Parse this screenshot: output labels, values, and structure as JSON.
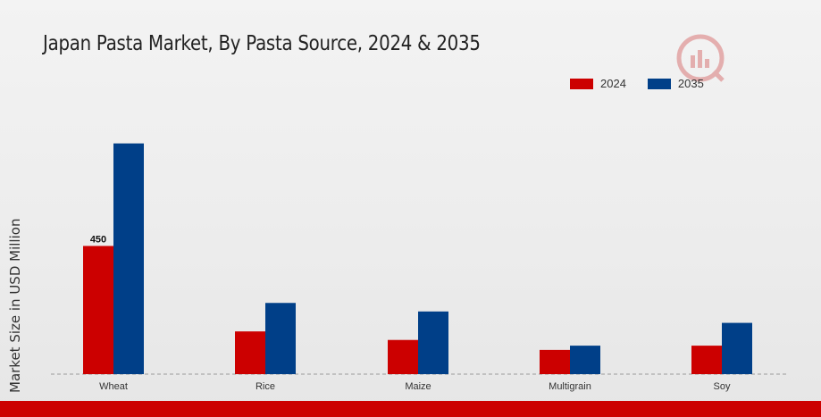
{
  "chart_data": {
    "type": "bar",
    "title": "Japan Pasta Market, By Pasta Source, 2024 & 2035",
    "xlabel": "",
    "ylabel": "Market Size in USD Million",
    "categories": [
      "Wheat",
      "Rice",
      "Maize",
      "Multigrain",
      "Soy"
    ],
    "series": [
      {
        "name": "2024",
        "color": "#cc0000",
        "values": [
          450,
          150,
          120,
          85,
          100
        ]
      },
      {
        "name": "2035",
        "color": "#003f88",
        "values": [
          810,
          250,
          220,
          100,
          180
        ]
      }
    ],
    "data_labels": [
      {
        "series": 0,
        "index": 0,
        "text": "450"
      }
    ],
    "ylim": [
      0,
      1000
    ],
    "grid": false,
    "legend": "top-right"
  },
  "logo_icon": "market-research-logo-icon",
  "bottom_bar_color": "#cc0000"
}
